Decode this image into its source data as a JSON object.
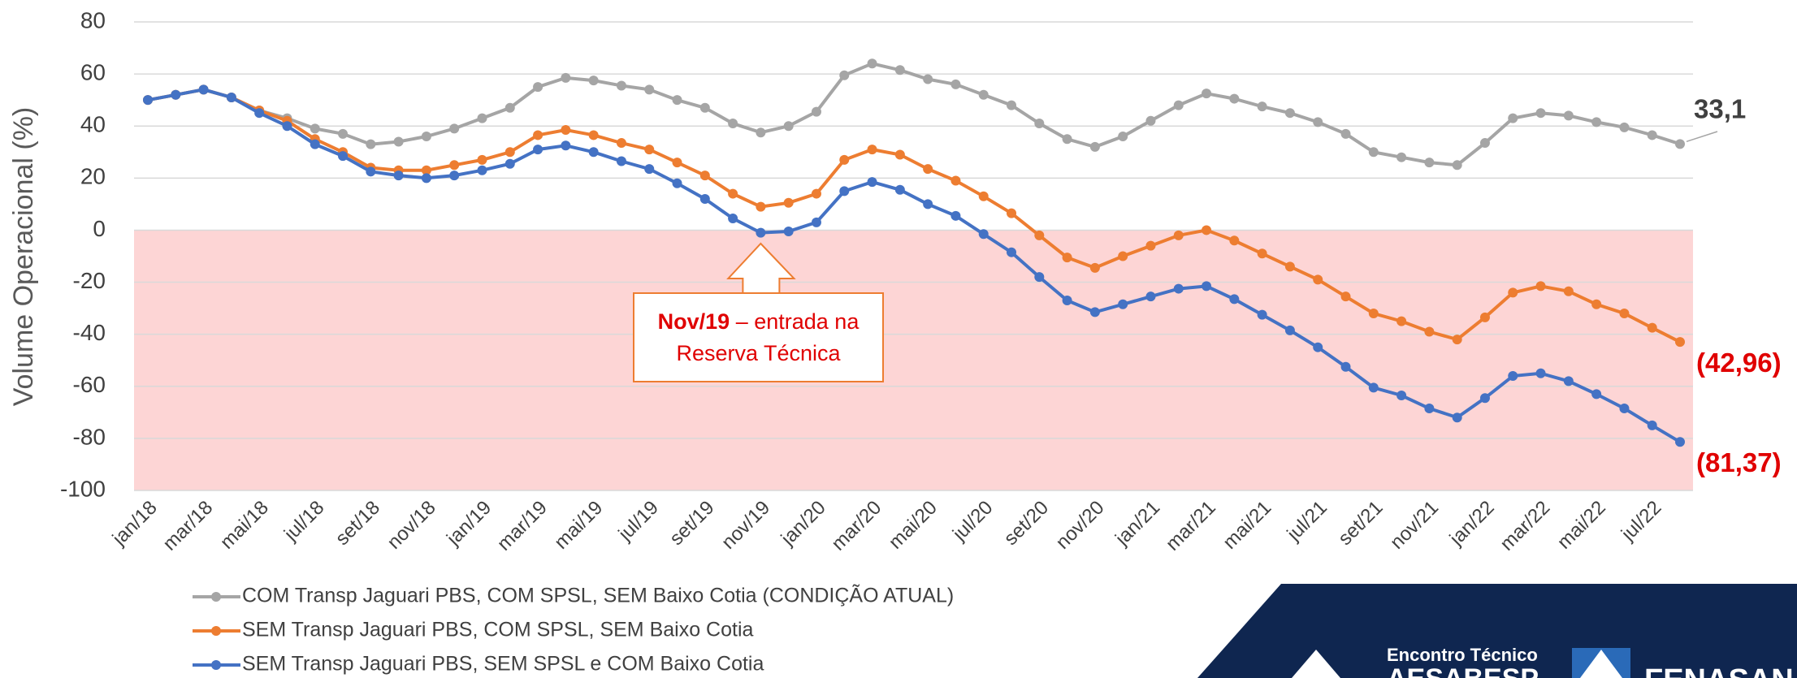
{
  "chart_data": {
    "type": "line",
    "ylabel": "Volume Operacional (%)",
    "categories": [
      "jan/18",
      null,
      "mar/18",
      null,
      "mai/18",
      null,
      "jul/18",
      null,
      "set/18",
      null,
      "nov/18",
      null,
      "jan/19",
      null,
      "mar/19",
      null,
      "mai/19",
      null,
      "jul/19",
      null,
      "set/19",
      null,
      "nov/19",
      null,
      "jan/20",
      null,
      "mar/20",
      null,
      "mai/20",
      null,
      "jul/20",
      null,
      "set/20",
      null,
      "nov/20",
      null,
      "jan/21",
      null,
      "mar/21",
      null,
      "mai/21",
      null,
      "jul/21",
      null,
      "set/21",
      null,
      "nov/21",
      null,
      "jan/22",
      null,
      "mar/22",
      null,
      "mai/22",
      null,
      "jul/22",
      null
    ],
    "series": [
      {
        "name": "COM Transp Jaguari PBS, COM SPSL, SEM Baixo Cotia (CONDIÇÃO ATUAL)",
        "color": "#a5a5a5",
        "end_label": "33,1",
        "end_label_color": "#404040",
        "values": [
          50,
          52,
          54,
          51,
          46,
          43,
          39,
          37,
          33,
          34,
          36,
          39,
          43,
          47,
          55,
          58.5,
          57.5,
          55.5,
          54,
          50,
          47,
          41,
          37.5,
          40,
          45.5,
          59.5,
          64,
          61.5,
          58,
          56,
          52,
          48,
          41,
          35,
          32,
          36,
          42,
          48,
          52.5,
          50.5,
          47.5,
          45,
          41.5,
          37,
          30,
          28,
          26,
          25,
          33.5,
          43,
          45,
          44,
          41.5,
          39.5,
          36.5,
          33.1
        ]
      },
      {
        "name": "SEM Transp Jaguari PBS, COM SPSL, SEM Baixo Cotia",
        "color": "#ed7d31",
        "end_label": "(42,96)",
        "end_label_color": "#e00000",
        "values": [
          50,
          52,
          54,
          51,
          46,
          42,
          35,
          30,
          24,
          23,
          23,
          25,
          27,
          30,
          36.5,
          38.5,
          36.5,
          33.5,
          31,
          26,
          21,
          14,
          9,
          10.5,
          14,
          27,
          31,
          29,
          23.5,
          19,
          13,
          6.5,
          -2,
          -10.5,
          -14.5,
          -10,
          -6,
          -2,
          0,
          -4,
          -9,
          -14,
          -19,
          -25.5,
          -32,
          -35,
          -39,
          -42,
          -33.5,
          -24,
          -21.5,
          -23.5,
          -28.5,
          -32,
          -37.5,
          -42.96
        ]
      },
      {
        "name": "SEM Transp Jaguari PBS, SEM SPSL e COM Baixo Cotia",
        "color": "#4472c4",
        "end_label": "(81,37)",
        "end_label_color": "#e00000",
        "values": [
          50,
          52,
          54,
          51,
          45,
          40,
          33,
          28.5,
          22.5,
          21,
          20,
          21,
          23,
          25.5,
          31,
          32.5,
          30,
          26.5,
          23.5,
          18,
          12,
          4.5,
          -1,
          -0.5,
          3,
          15,
          18.5,
          15.5,
          10,
          5.5,
          -1.5,
          -8.5,
          -18,
          -27,
          -31.5,
          -28.5,
          -25.5,
          -22.5,
          -21.5,
          -26.5,
          -32.5,
          -38.5,
          -45,
          -52.5,
          -60.5,
          -63.5,
          -68.5,
          -72,
          -64.5,
          -56,
          -55,
          -58,
          -63,
          -68.5,
          -75,
          -81.37
        ]
      }
    ],
    "ylim": [
      -100,
      80
    ],
    "yticks": [
      -100,
      -80,
      -60,
      -40,
      -20,
      0,
      20,
      40,
      60,
      80
    ],
    "grid": true,
    "negative_shading": "#fdd5d5",
    "annotation": {
      "bold": "Nov/19",
      "text": "– entrada na Reserva Técnica",
      "category_index": 22
    },
    "logo": {
      "line1": "Encontro Técnico",
      "line2": "AESABESP",
      "brand": "FENASAN"
    }
  }
}
